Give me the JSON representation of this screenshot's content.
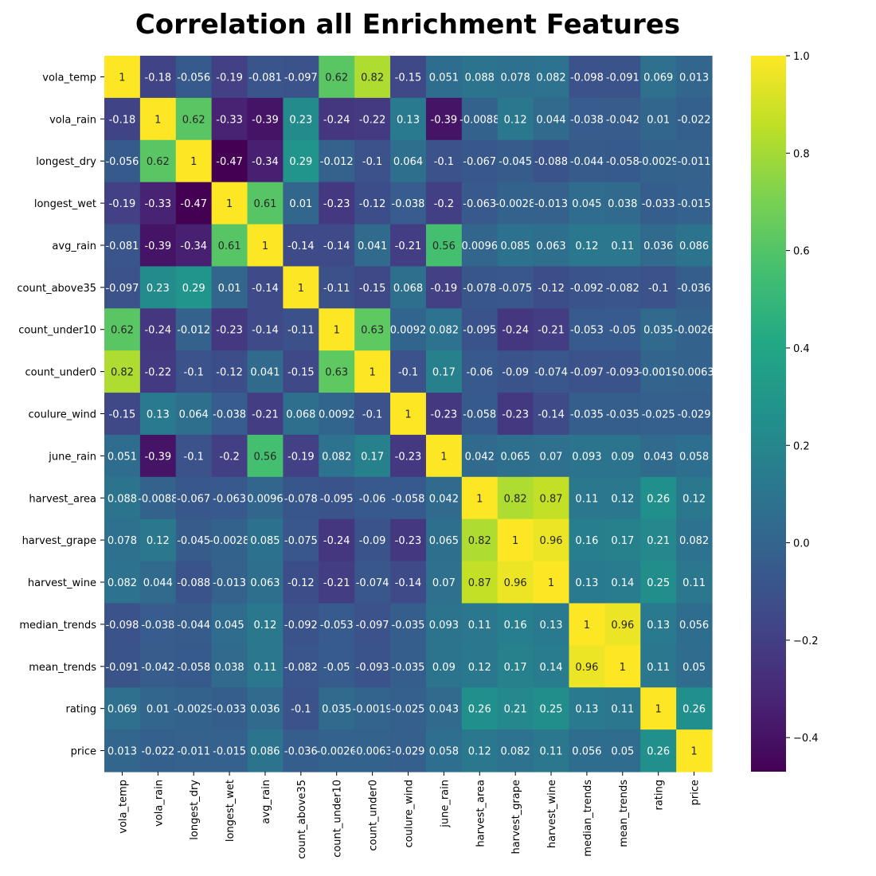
{
  "chart_data": {
    "type": "heatmap",
    "title": "Correlation all Enrichment Features",
    "xlabel": "",
    "ylabel": "",
    "labels": [
      "vola_temp",
      "vola_rain",
      "longest_dry",
      "longest_wet",
      "avg_rain",
      "count_above35",
      "count_under10",
      "count_under0",
      "coulure_wind",
      "june_rain",
      "harvest_area",
      "harvest_grape",
      "harvest_wine",
      "median_trends",
      "mean_trends",
      "rating",
      "price"
    ],
    "matrix": [
      [
        "1",
        "-0.18",
        "-0.056",
        "-0.19",
        "-0.081",
        "-0.097",
        "0.62",
        "0.82",
        "-0.15",
        "0.051",
        "0.088",
        "0.078",
        "0.082",
        "-0.098",
        "-0.091",
        "0.069",
        "0.013"
      ],
      [
        "-0.18",
        "1",
        "0.62",
        "-0.33",
        "-0.39",
        "0.23",
        "-0.24",
        "-0.22",
        "0.13",
        "-0.39",
        "-0.0088",
        "0.12",
        "0.044",
        "-0.038",
        "-0.042",
        "0.01",
        "-0.022"
      ],
      [
        "-0.056",
        "0.62",
        "1",
        "-0.47",
        "-0.34",
        "0.29",
        "-0.012",
        "-0.1",
        "0.064",
        "-0.1",
        "-0.067",
        "-0.045",
        "-0.088",
        "-0.044",
        "-0.058",
        "-0.0029",
        "-0.011"
      ],
      [
        "-0.19",
        "-0.33",
        "-0.47",
        "1",
        "0.61",
        "0.01",
        "-0.23",
        "-0.12",
        "-0.038",
        "-0.2",
        "-0.063",
        "-0.0028",
        "-0.013",
        "0.045",
        "0.038",
        "-0.033",
        "-0.015"
      ],
      [
        "-0.081",
        "-0.39",
        "-0.34",
        "0.61",
        "1",
        "-0.14",
        "-0.14",
        "0.041",
        "-0.21",
        "0.56",
        "0.0096",
        "0.085",
        "0.063",
        "0.12",
        "0.11",
        "0.036",
        "0.086"
      ],
      [
        "-0.097",
        "0.23",
        "0.29",
        "0.01",
        "-0.14",
        "1",
        "-0.11",
        "-0.15",
        "0.068",
        "-0.19",
        "-0.078",
        "-0.075",
        "-0.12",
        "-0.092",
        "-0.082",
        "-0.1",
        "-0.036"
      ],
      [
        "0.62",
        "-0.24",
        "-0.012",
        "-0.23",
        "-0.14",
        "-0.11",
        "1",
        "0.63",
        "0.0092",
        "0.082",
        "-0.095",
        "-0.24",
        "-0.21",
        "-0.053",
        "-0.05",
        "0.035",
        "-0.0026"
      ],
      [
        "0.82",
        "-0.22",
        "-0.1",
        "-0.12",
        "0.041",
        "-0.15",
        "0.63",
        "1",
        "-0.1",
        "0.17",
        "-0.06",
        "-0.09",
        "-0.074",
        "-0.097",
        "-0.093",
        "-0.0019",
        "-0.0063"
      ],
      [
        "-0.15",
        "0.13",
        "0.064",
        "-0.038",
        "-0.21",
        "0.068",
        "0.0092",
        "-0.1",
        "1",
        "-0.23",
        "-0.058",
        "-0.23",
        "-0.14",
        "-0.035",
        "-0.035",
        "-0.025",
        "-0.029"
      ],
      [
        "0.051",
        "-0.39",
        "-0.1",
        "-0.2",
        "0.56",
        "-0.19",
        "0.082",
        "0.17",
        "-0.23",
        "1",
        "0.042",
        "0.065",
        "0.07",
        "0.093",
        "0.09",
        "0.043",
        "0.058"
      ],
      [
        "0.088",
        "-0.0088",
        "-0.067",
        "-0.063",
        "0.0096",
        "-0.078",
        "-0.095",
        "-0.06",
        "-0.058",
        "0.042",
        "1",
        "0.82",
        "0.87",
        "0.11",
        "0.12",
        "0.26",
        "0.12"
      ],
      [
        "0.078",
        "0.12",
        "-0.045",
        "-0.0028",
        "0.085",
        "-0.075",
        "-0.24",
        "-0.09",
        "-0.23",
        "0.065",
        "0.82",
        "1",
        "0.96",
        "0.16",
        "0.17",
        "0.21",
        "0.082"
      ],
      [
        "0.082",
        "0.044",
        "-0.088",
        "-0.013",
        "0.063",
        "-0.12",
        "-0.21",
        "-0.074",
        "-0.14",
        "0.07",
        "0.87",
        "0.96",
        "1",
        "0.13",
        "0.14",
        "0.25",
        "0.11"
      ],
      [
        "-0.098",
        "-0.038",
        "-0.044",
        "0.045",
        "0.12",
        "-0.092",
        "-0.053",
        "-0.097",
        "-0.035",
        "0.093",
        "0.11",
        "0.16",
        "0.13",
        "1",
        "0.96",
        "0.13",
        "0.056"
      ],
      [
        "-0.091",
        "-0.042",
        "-0.058",
        "0.038",
        "0.11",
        "-0.082",
        "-0.05",
        "-0.093",
        "-0.035",
        "0.09",
        "0.12",
        "0.17",
        "0.14",
        "0.96",
        "1",
        "0.11",
        "0.05"
      ],
      [
        "0.069",
        "0.01",
        "-0.0029",
        "-0.033",
        "0.036",
        "-0.1",
        "0.035",
        "-0.0019",
        "-0.025",
        "0.043",
        "0.26",
        "0.21",
        "0.25",
        "0.13",
        "0.11",
        "1",
        "0.26"
      ],
      [
        "0.013",
        "-0.022",
        "-0.011",
        "-0.015",
        "0.086",
        "-0.036",
        "-0.0026",
        "-0.0063",
        "-0.029",
        "0.058",
        "0.12",
        "0.082",
        "0.11",
        "0.056",
        "0.05",
        "0.26",
        "1"
      ]
    ],
    "colormap": "viridis",
    "vmin": -0.47,
    "vmax": 1.0,
    "colorbar": {
      "ticks": [
        "1.0",
        "0.8",
        "0.6",
        "0.4",
        "0.2",
        "0.0",
        "−0.2",
        "−0.4"
      ],
      "tick_values": [
        1.0,
        0.8,
        0.6,
        0.4,
        0.2,
        0.0,
        -0.2,
        -0.4
      ]
    },
    "annotations": true,
    "grid": false,
    "legend": "colorbar-right"
  }
}
